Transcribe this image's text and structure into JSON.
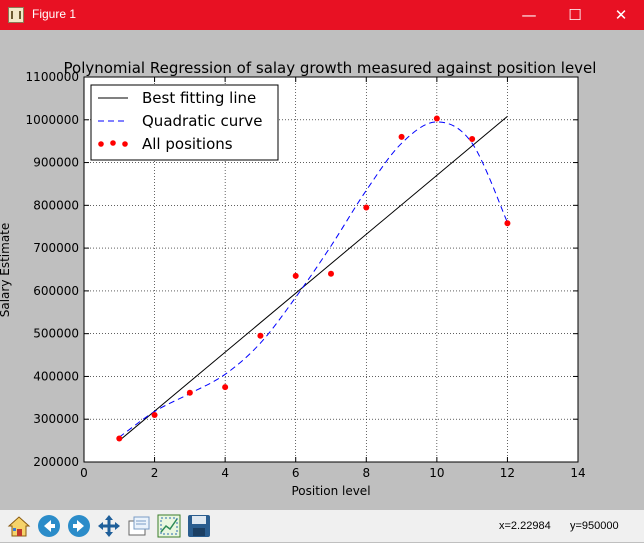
{
  "window": {
    "title": "Figure 1",
    "min_glyph": "—",
    "max_glyph": "☐",
    "close_glyph": "✕",
    "titlebar_color": "#e81123"
  },
  "toolbar": {
    "buttons": [
      {
        "name": "home-icon"
      },
      {
        "name": "back-icon"
      },
      {
        "name": "forward-icon"
      },
      {
        "name": "pan-icon"
      },
      {
        "name": "zoom-icon"
      },
      {
        "name": "subplots-icon"
      },
      {
        "name": "save-icon"
      }
    ],
    "coord_x": "x=2.22984",
    "coord_y": "y=950000"
  },
  "chart_data": {
    "type": "line",
    "title": "Polynomial Regression of salay growth measured against position level",
    "xlabel": "Position level",
    "ylabel": "Salary Estimate",
    "xlim": [
      0,
      14
    ],
    "ylim": [
      200000,
      1100000
    ],
    "xticks": [
      0,
      2,
      4,
      6,
      8,
      10,
      12,
      14
    ],
    "yticks": [
      200000,
      300000,
      400000,
      500000,
      600000,
      700000,
      800000,
      900000,
      1000000,
      1100000
    ],
    "grid": true,
    "legend_position": "top-left",
    "legend": [
      "Best fitting line",
      "Quadratic curve",
      "All positions"
    ],
    "series": [
      {
        "name": "Best fitting line",
        "kind": "line",
        "color": "#000000",
        "style": "solid",
        "x": [
          1,
          12
        ],
        "y": [
          250000,
          1008000
        ]
      },
      {
        "name": "Quadratic curve",
        "kind": "line",
        "color": "#0000ff",
        "style": "dashed",
        "x": [
          1,
          2,
          3,
          4,
          5,
          6,
          7,
          8,
          9,
          10,
          11,
          12
        ],
        "y": [
          258000,
          318000,
          360000,
          405000,
          478000,
          585000,
          705000,
          835000,
          945000,
          995000,
          945000,
          760000
        ]
      },
      {
        "name": "All positions",
        "kind": "scatter",
        "color": "#ff0000",
        "x": [
          1,
          2,
          3,
          4,
          5,
          6,
          7,
          8,
          9,
          10,
          11,
          12
        ],
        "y": [
          255000,
          310000,
          362000,
          375000,
          495000,
          635000,
          640000,
          795000,
          960000,
          1003000,
          955000,
          758000
        ]
      }
    ]
  }
}
